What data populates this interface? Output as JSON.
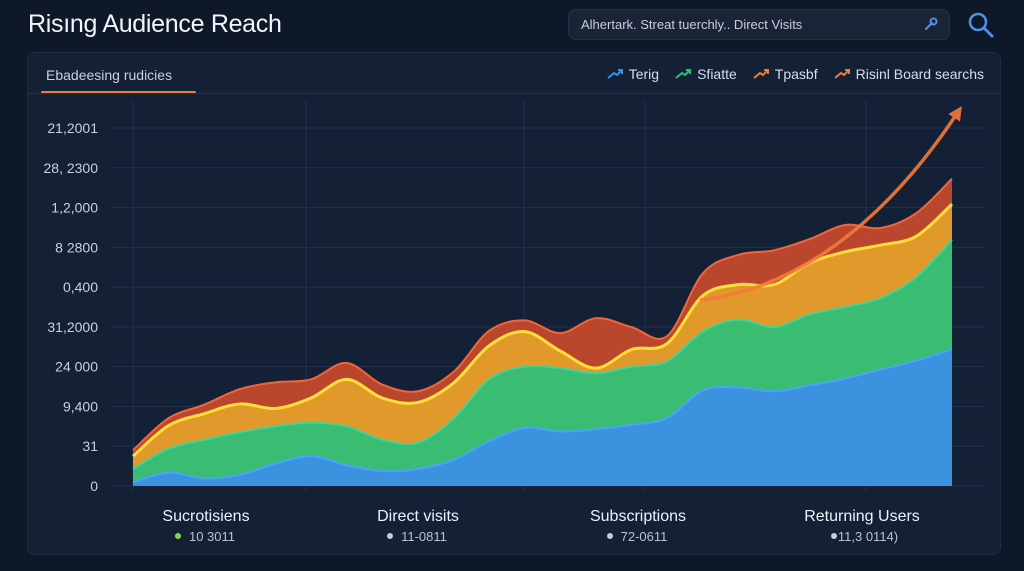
{
  "header": {
    "title": "Risıng Audience Reach",
    "search_text": "Alhertark. Streat tuerchly.. Direct Visits"
  },
  "panel": {
    "subtitle": "Ebadeesing rudicies"
  },
  "legend": [
    {
      "label": "Terig",
      "color": "#3d8ee8",
      "icon": "trend-arrow-icon"
    },
    {
      "label": "Sfiatte",
      "color": "#2bbf7a",
      "icon": "trend-arrow-icon"
    },
    {
      "label": "Tpasbf",
      "color": "#f07a3c",
      "icon": "trend-arrow-icon"
    },
    {
      "label": "Risinl Board searchs",
      "color": "#f07a3c",
      "icon": "trend-arrow-icon"
    }
  ],
  "chart_data": {
    "type": "area",
    "stacked": true,
    "grid": true,
    "y_tick_labels": [
      "21,2001",
      "28, 2300",
      "1,2,000",
      "8 2800",
      "0,400",
      "31,2000",
      "24 000",
      "9,400",
      "31",
      "0"
    ],
    "categories": [
      "Sucrotisiens",
      "Direct visits",
      "Subscriptions",
      "Returning Users"
    ],
    "category_sublabels": [
      "10 3011",
      "11-0811",
      "72-0611",
      "11,3 0114)"
    ],
    "category_dot_colors": [
      "#8bd34a",
      "#c8cdd6",
      "#c8cdd6",
      "#c8cdd6"
    ],
    "x": [
      0,
      1,
      2,
      3,
      4,
      5,
      6,
      7,
      8,
      9,
      10,
      11,
      12,
      13,
      14,
      15,
      16,
      17,
      18,
      19,
      20,
      21,
      22,
      23
    ],
    "series": [
      {
        "color": "#3d8ee8",
        "values": [
          0.5,
          1.8,
          1.0,
          1.5,
          3.0,
          4.0,
          2.8,
          2.0,
          2.3,
          3.5,
          6.0,
          7.8,
          7.3,
          7.6,
          8.2,
          9.1,
          12.8,
          13.2,
          12.7,
          13.5,
          14.4,
          15.6,
          16.8,
          18.3
        ]
      },
      {
        "color": "#2bbf7a",
        "values": [
          1.8,
          3.2,
          5.2,
          5.7,
          5.0,
          4.5,
          5.2,
          4.2,
          3.5,
          5.5,
          8.3,
          8.2,
          8.5,
          7.5,
          7.8,
          7.6,
          7.9,
          9.1,
          8.6,
          9.5,
          9.6,
          9.6,
          11.2,
          14.7
        ]
      },
      {
        "color": "#e4a12c",
        "values": [
          1.7,
          3.1,
          3.5,
          3.8,
          2.4,
          3.3,
          6.3,
          5.6,
          5.4,
          4.8,
          4.5,
          4.7,
          2.3,
          0.7,
          2.3,
          2.4,
          4.8,
          4.7,
          5.7,
          6.9,
          7.4,
          7.1,
          5.5,
          4.8
        ]
      },
      {
        "color": "#c94a2c",
        "values": [
          0.8,
          1.0,
          1.2,
          2.0,
          3.5,
          2.5,
          2.2,
          1.8,
          1.5,
          1.5,
          2.0,
          1.5,
          2.4,
          6.7,
          3.0,
          1.0,
          3.0,
          4.0,
          4.6,
          3.2,
          3.6,
          2.3,
          3.1,
          3.4
        ]
      }
    ],
    "ylim": [
      0,
      48
    ]
  }
}
